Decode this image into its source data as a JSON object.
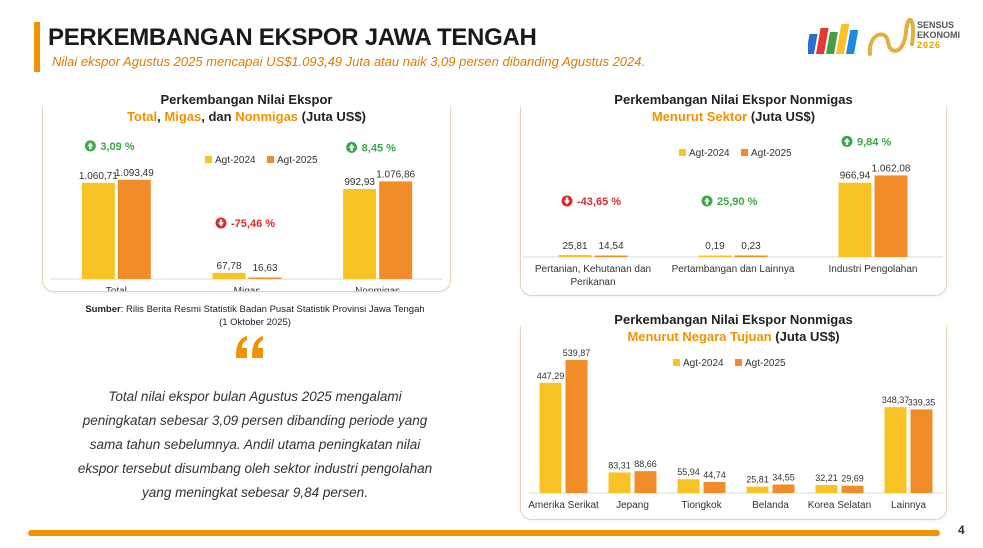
{
  "header": {
    "title": "PERKEMBANGAN EKSPOR JAWA TENGAH",
    "subtitle": "Nilai ekspor Agustus 2025 mencapai US$1.093,49 Juta atau naik 3,09 persen dibanding Agustus 2024."
  },
  "logo": {
    "line1": "SENSUS",
    "line2": "EKONOMI",
    "year": "2026",
    "icon": "sensus-ekonomi-logo-icon"
  },
  "colors": {
    "agt2024": "#f7c325",
    "agt2025": "#f28c28",
    "up": "#3aa845",
    "down": "#d92b2b",
    "accent": "#f39200"
  },
  "panel1": {
    "title_line1": "Perkembangan Nilai Ekspor",
    "title_line2_parts": [
      "Total",
      ", ",
      "Migas",
      ", dan ",
      "Nonmigas",
      " (Juta US$)"
    ]
  },
  "panel2": {
    "title_line1": "Perkembangan Nilai Ekspor Nonmigas",
    "title_line2_hl": "Menurut Sektor",
    "title_line2_rest": " (Juta US$)"
  },
  "panel3": {
    "title_line1": "Perkembangan Nilai Ekspor Nonmigas",
    "title_line2_hl": "Menurut Negara Tujuan",
    "title_line2_rest": " (Juta US$)"
  },
  "source": {
    "label": "Sumber",
    "text": ": Rilis Berita Resmi Statistik Badan Pusat Statistik Provinsi Jawa Tengah",
    "date": "(1 Oktober 2025)"
  },
  "quote": "Total nilai ekspor bulan Agustus 2025 mengalami peningkatan sebesar 3,09 persen dibanding periode yang sama tahun sebelumnya. Andil utama peningkatan nilai ekspor tersebut disumbang oleh sektor industri pengolahan yang meningkat sebesar 9,84 persen.",
  "page_number": "4",
  "chart_data": [
    {
      "type": "bar",
      "title": "Perkembangan Nilai Ekspor Total, Migas, dan Nonmigas (Juta US$)",
      "categories": [
        "Total",
        "Migas",
        "Nonmigas"
      ],
      "series": [
        {
          "name": "Agt-2024",
          "values": [
            1060.71,
            67.78,
            992.93
          ],
          "labels": [
            "1.060,71",
            "67,78",
            "992,93"
          ]
        },
        {
          "name": "Agt-2025",
          "values": [
            1093.49,
            16.63,
            1076.86
          ],
          "labels": [
            "1.093,49",
            "16,63",
            "1.076,86"
          ]
        }
      ],
      "changes": [
        {
          "label": "3,09  %",
          "direction": "up"
        },
        {
          "label": "-75,46  %",
          "direction": "down"
        },
        {
          "label": "8,45  %",
          "direction": "up"
        }
      ],
      "ylim": [
        0,
        1500
      ],
      "legend": "top-center",
      "grid": false
    },
    {
      "type": "bar",
      "title": "Perkembangan Nilai Ekspor Nonmigas Menurut Sektor (Juta US$)",
      "categories": [
        "Pertanian, Kehutanan dan Perikanan",
        "Pertambangan dan Lainnya",
        "Industri Pengolahan"
      ],
      "category_lines": [
        [
          "Pertanian, Kehutanan dan",
          "Perikanan"
        ],
        [
          "Pertambangan dan Lainnya"
        ],
        [
          "Industri Pengolahan"
        ]
      ],
      "series": [
        {
          "name": "Agt-2024",
          "values": [
            25.81,
            0.19,
            966.94
          ],
          "labels": [
            "25,81",
            "0,19",
            "966,94"
          ]
        },
        {
          "name": "Agt-2025",
          "values": [
            14.54,
            0.23,
            1062.08
          ],
          "labels": [
            "14,54",
            "0,23",
            "1.062,08"
          ]
        }
      ],
      "changes": [
        {
          "label": "-43,65  %",
          "direction": "down"
        },
        {
          "label": "25,90  %",
          "direction": "up"
        },
        {
          "label": "9,84  %",
          "direction": "up"
        }
      ],
      "ylim": [
        0,
        1250
      ],
      "legend": "top-center",
      "grid": false
    },
    {
      "type": "bar",
      "title": "Perkembangan Nilai Ekspor Nonmigas Menurut Negara Tujuan (Juta US$)",
      "categories": [
        "Amerika Serikat",
        "Jepang",
        "Tiongkok",
        "Belanda",
        "Korea Selatan",
        "Lainnya"
      ],
      "series": [
        {
          "name": "Agt-2024",
          "values": [
            447.29,
            83.31,
            55.94,
            25.81,
            32.21,
            348.37
          ],
          "labels": [
            "447,29",
            "83,31",
            "55,94",
            "25,81",
            "32,21",
            "348,37"
          ]
        },
        {
          "name": "Agt-2025",
          "values": [
            539.87,
            88.66,
            44.74,
            34.55,
            29.69,
            339.35
          ],
          "labels": [
            "539,87",
            "88,66",
            "44,74",
            "34,55",
            "29,69",
            "339,35"
          ]
        }
      ],
      "ylim": [
        0,
        560
      ],
      "legend": "top-right",
      "grid": false
    }
  ]
}
